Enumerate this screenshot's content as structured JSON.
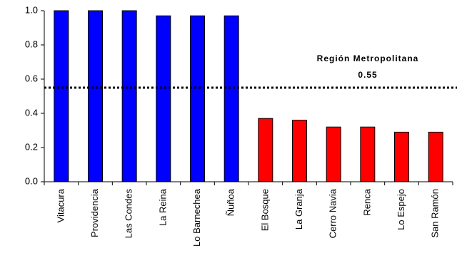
{
  "chart_data": {
    "type": "bar",
    "categories": [
      "Vitacura",
      "Providencia",
      "Las Condes",
      "La Reina",
      "Lo Barnechea",
      "Ñuñoa",
      "El Bosque",
      "La Granja",
      "Cerro Navia",
      "Renca",
      "Lo Espejo",
      "San Ramón"
    ],
    "values": [
      1.0,
      1.0,
      1.0,
      0.97,
      0.97,
      0.97,
      0.37,
      0.36,
      0.32,
      0.32,
      0.29,
      0.29
    ],
    "colors": [
      "#0000ff",
      "#0000ff",
      "#0000ff",
      "#0000ff",
      "#0000ff",
      "#0000ff",
      "#ff0000",
      "#ff0000",
      "#ff0000",
      "#ff0000",
      "#ff0000",
      "#ff0000"
    ],
    "ylim": [
      0,
      1.0
    ],
    "yticks": [
      {
        "value": 0,
        "label": "0.0"
      },
      0.2,
      0.4,
      0.6,
      0.8,
      {
        "value": 1.0,
        "label": "1.0"
      }
    ],
    "reference_line": {
      "value": 0.55,
      "label": "Región Metropolitana",
      "value_label": "0.55"
    }
  }
}
